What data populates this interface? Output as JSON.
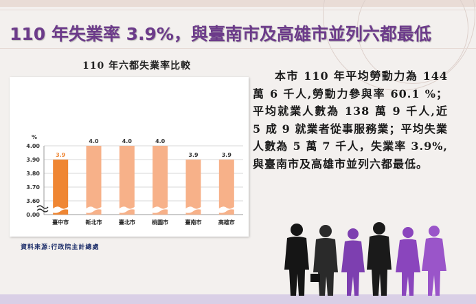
{
  "slide": {
    "title": "110 年失業率 3.9%，與臺南市及高雄市並列六都最低",
    "paragraph": "本市 110 年平均勞動力為 144 萬 6 千人,勞動力參與率 60.1 %；平均就業人數為 138 萬 9 千人,近 5 成 9 就業者從事服務業；平均失業人數為 5 萬 7 千人，失業率 3.9%,與臺南市及高雄市並列六都最低。",
    "source": "資料來源:行政院主計總處"
  },
  "colors": {
    "title": "#6c3b8a",
    "highlight_bar": "#ef8633",
    "other_bar": "#f7b189",
    "value_label": "#ffffff",
    "highlight_label": "#ef8633"
  },
  "chart_data": {
    "type": "bar",
    "title": "110 年六都失業率比較",
    "ylabel": "%",
    "categories": [
      "臺中市",
      "新北市",
      "臺北市",
      "桃園市",
      "臺南市",
      "高雄市"
    ],
    "values": [
      3.9,
      4.0,
      4.0,
      4.0,
      3.9,
      3.9
    ],
    "value_labels": [
      "3.9",
      "4.0",
      "4.0",
      "4.0",
      "3.9",
      "3.9"
    ],
    "highlight_index": 0,
    "yticks": [
      "4.00",
      "3.90",
      "3.80",
      "3.70",
      "3.60",
      "0.00"
    ],
    "axis_break": true,
    "ylim_display": [
      3.55,
      4.0
    ],
    "grid": true
  }
}
